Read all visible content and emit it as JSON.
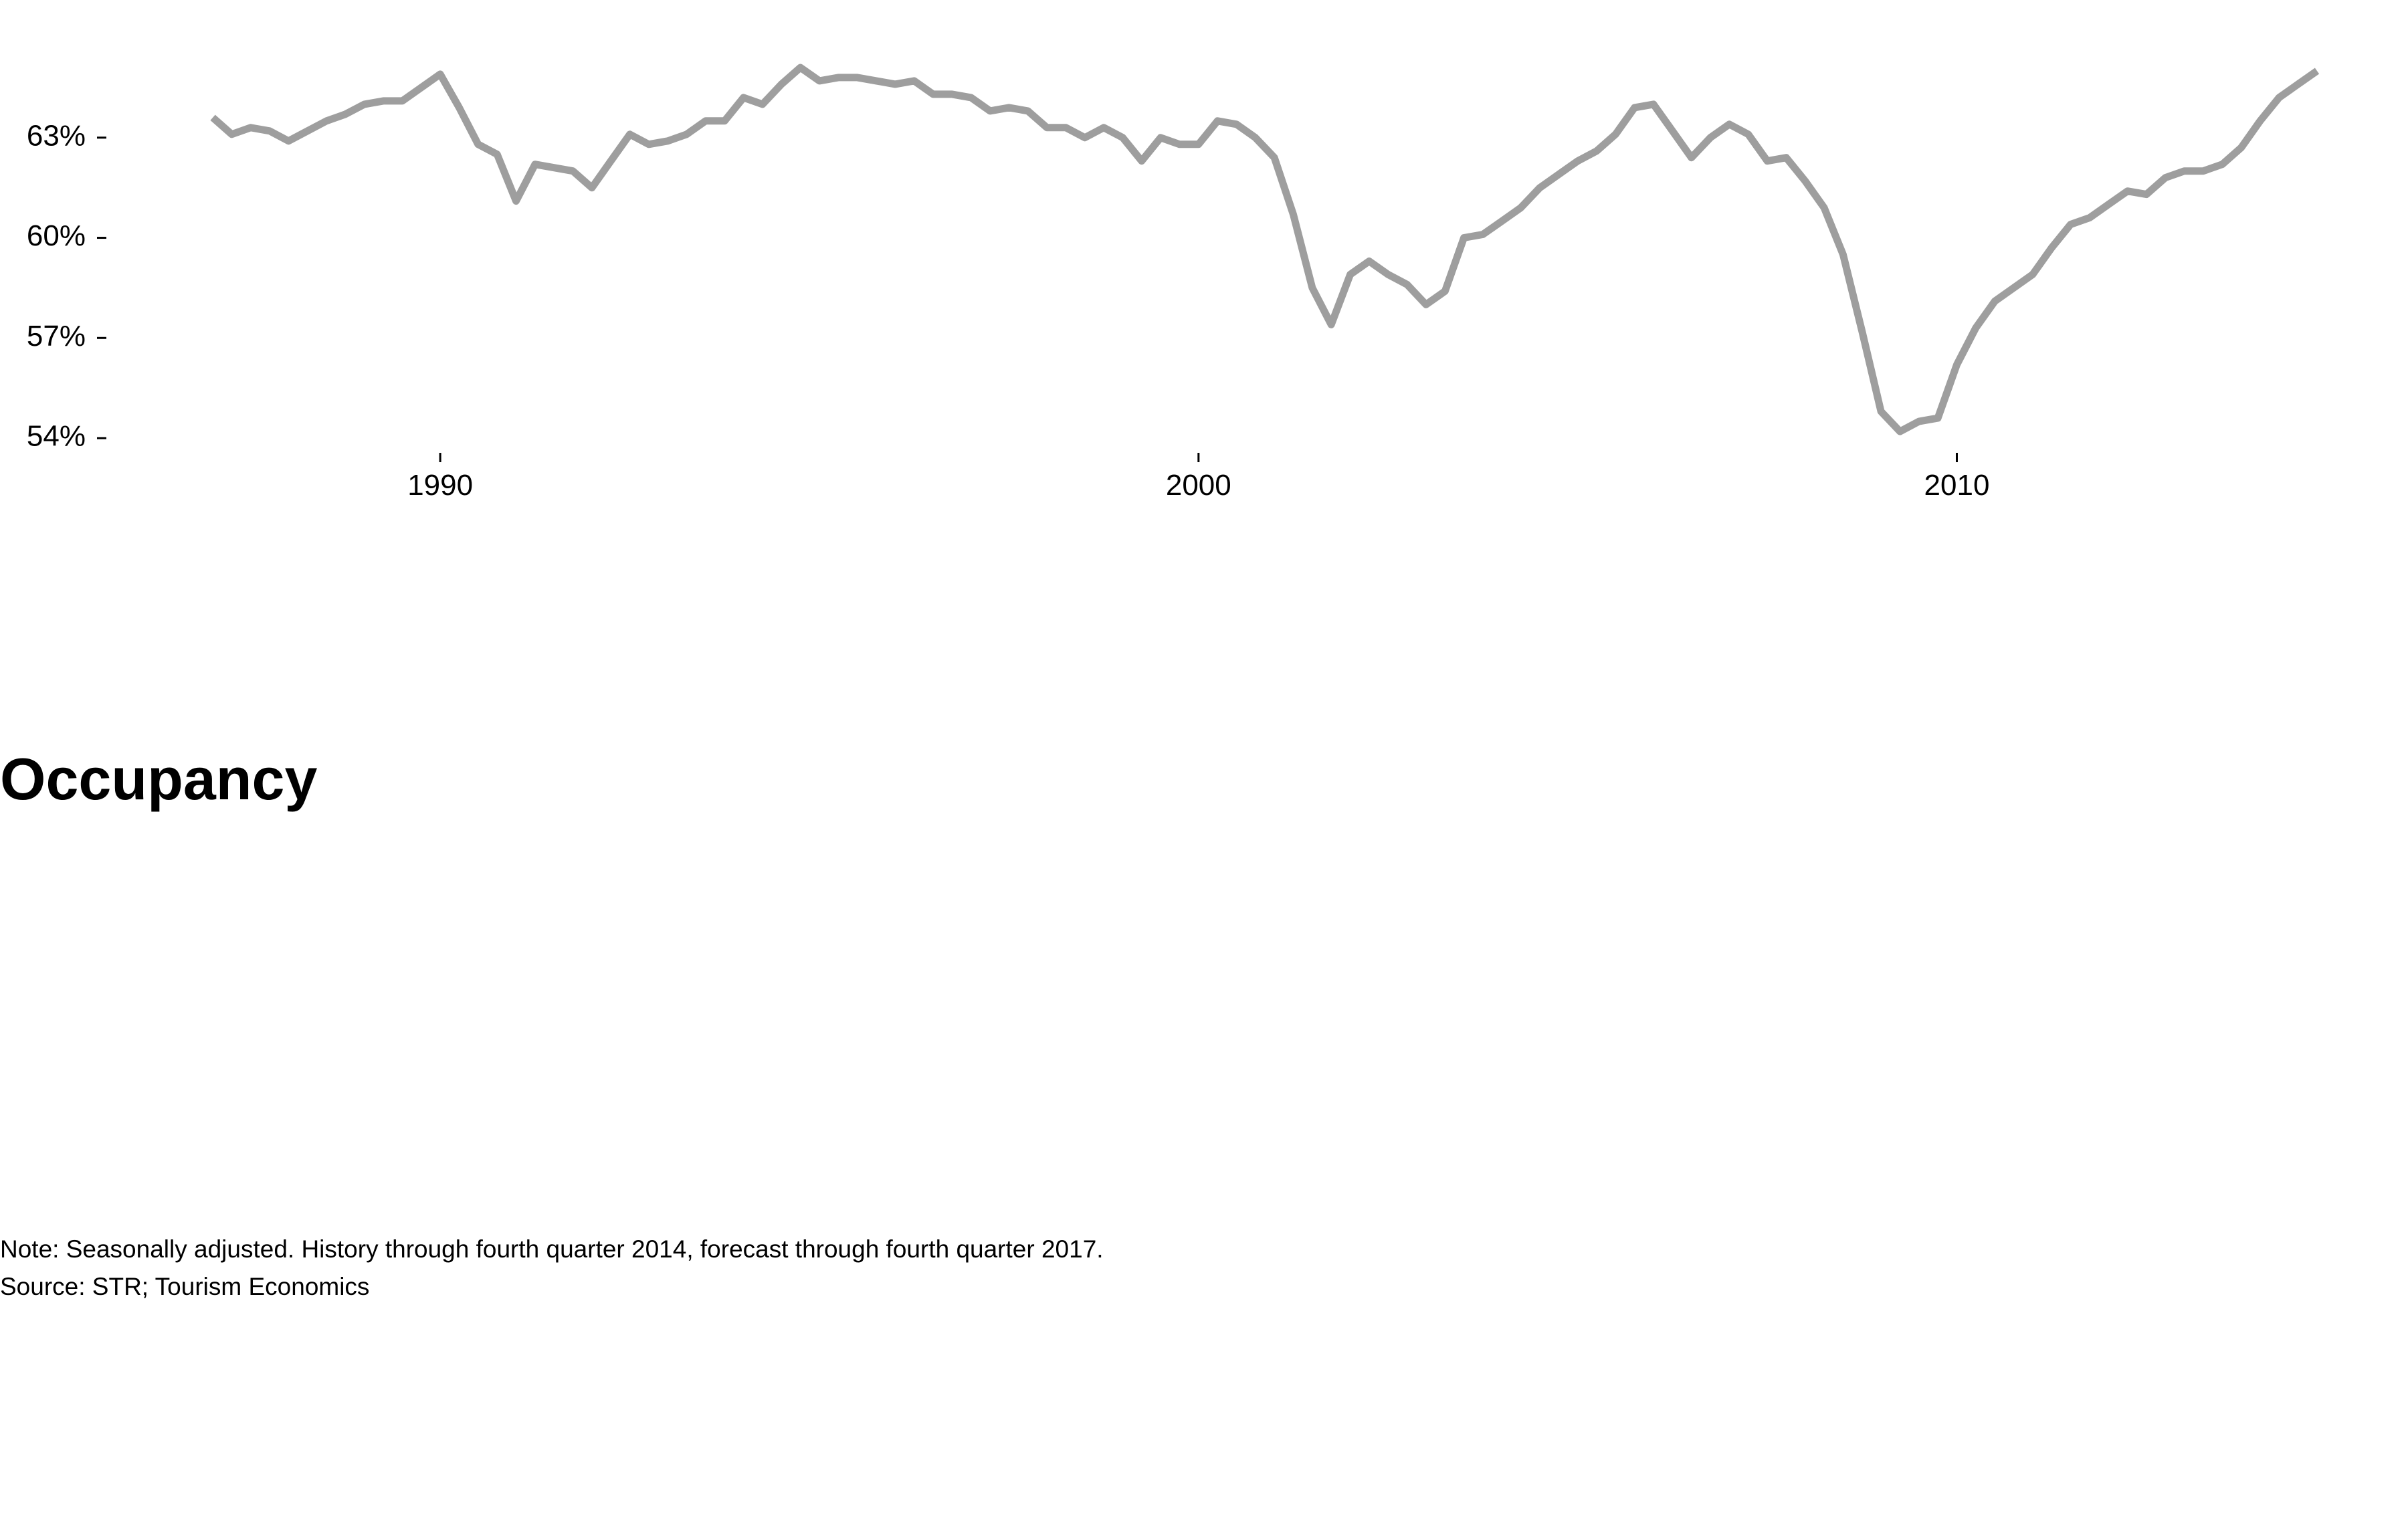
{
  "chart_data": {
    "type": "line",
    "title": "Occupancy",
    "note": "Note: Seasonally adjusted. History through fourth quarter 2014, forecast through fourth quarter 2017.",
    "source": "Source: STR; Tourism Economics",
    "color": "#9e9e9e",
    "x": [
      1987,
      1987.25,
      1987.5,
      1987.75,
      1988,
      1988.25,
      1988.5,
      1988.75,
      1989,
      1989.25,
      1989.5,
      1989.75,
      1990,
      1990.25,
      1990.5,
      1990.75,
      1991,
      1991.25,
      1991.5,
      1991.75,
      1992,
      1992.25,
      1992.5,
      1992.75,
      1993,
      1993.25,
      1993.5,
      1993.75,
      1994,
      1994.25,
      1994.5,
      1994.75,
      1995,
      1995.25,
      1995.5,
      1995.75,
      1996,
      1996.25,
      1996.5,
      1996.75,
      1997,
      1997.25,
      1997.5,
      1997.75,
      1998,
      1998.25,
      1998.5,
      1998.75,
      1999,
      1999.25,
      1999.5,
      1999.75,
      2000,
      2000.25,
      2000.5,
      2000.75,
      2001,
      2001.25,
      2001.5,
      2001.75,
      2002,
      2002.25,
      2002.5,
      2002.75,
      2003,
      2003.25,
      2003.5,
      2003.75,
      2004,
      2004.25,
      2004.5,
      2004.75,
      2005,
      2005.25,
      2005.5,
      2005.75,
      2006,
      2006.25,
      2006.5,
      2006.75,
      2007,
      2007.25,
      2007.5,
      2007.75,
      2008,
      2008.25,
      2008.5,
      2008.75,
      2009,
      2009.25,
      2009.5,
      2009.75,
      2010,
      2010.25,
      2010.5,
      2010.75,
      2011,
      2011.25,
      2011.5,
      2011.75,
      2012,
      2012.25,
      2012.5,
      2012.75,
      2013,
      2013.25,
      2013.5,
      2013.75,
      2014,
      2014.25,
      2014.5,
      2014.75
    ],
    "values": [
      63.6,
      63.1,
      63.3,
      63.2,
      62.9,
      63.2,
      63.5,
      63.7,
      64.0,
      64.1,
      64.1,
      64.5,
      64.9,
      63.9,
      62.8,
      62.5,
      61.1,
      62.2,
      62.1,
      62.0,
      61.5,
      62.3,
      63.1,
      62.8,
      62.9,
      63.1,
      63.5,
      63.5,
      64.2,
      64.0,
      64.6,
      65.1,
      64.7,
      64.8,
      64.8,
      64.7,
      64.6,
      64.7,
      64.3,
      64.3,
      64.2,
      63.8,
      63.9,
      63.8,
      63.3,
      63.3,
      63.0,
      63.3,
      63.0,
      62.3,
      63.0,
      62.8,
      62.8,
      63.5,
      63.4,
      63.0,
      62.4,
      60.7,
      58.5,
      57.4,
      58.9,
      59.3,
      58.9,
      58.6,
      58.0,
      58.4,
      60.0,
      60.1,
      60.5,
      60.9,
      61.5,
      61.9,
      62.3,
      62.6,
      63.1,
      63.9,
      64.0,
      63.2,
      62.4,
      63.0,
      63.4,
      63.1,
      62.3,
      62.4,
      61.7,
      60.9,
      59.5,
      57.2,
      54.8,
      54.2,
      54.5,
      54.6,
      56.2,
      57.3,
      58.1,
      58.5,
      58.9,
      59.7,
      60.4,
      60.6,
      61.0,
      61.4,
      61.3,
      61.8,
      62.0,
      62.0,
      62.2,
      62.7,
      63.5,
      64.2,
      64.6,
      65.0
    ],
    "xlim": [
      1985.5,
      2015.5
    ],
    "xticks": [
      1990,
      2000,
      2010
    ],
    "ylim": [
      53.6,
      65.5
    ],
    "yticks": [
      {
        "value": 54,
        "label": "54%"
      },
      {
        "value": 57,
        "label": "57%"
      },
      {
        "value": 60,
        "label": "60%"
      },
      {
        "value": 63,
        "label": "63%"
      }
    ],
    "grid": false
  }
}
